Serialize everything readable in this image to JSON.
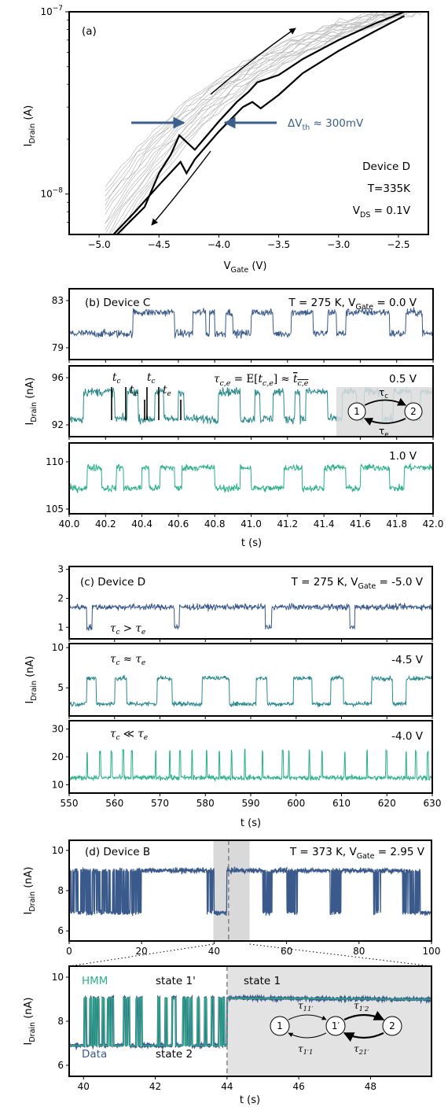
{
  "colors": {
    "dark": "#3a5a8c",
    "mid": "#2c8a8c",
    "light": "#2bb087",
    "arrow": "#3b5f8a",
    "gray": "#b8b8b8",
    "shade": "#dcdcdc"
  },
  "chart_data": [
    {
      "panel": "(a)",
      "type": "line",
      "xlabel": "V",
      "xlabel_sub": "Gate",
      "xlabel_unit": " (V)",
      "ylabel": "I",
      "ylabel_sub": "Drain",
      "ylabel_unit": " (A)",
      "xlim": [
        -5.25,
        -2.25
      ],
      "ylim": [
        6e-09,
        1e-07
      ],
      "yscale": "log",
      "xticks": [
        -5.0,
        -4.5,
        -4.0,
        -3.5,
        -3.0,
        -2.5
      ],
      "xtick_labels": [
        "−5.0",
        "−4.5",
        "−4.0",
        "−3.5",
        "−3.0",
        "−2.5"
      ],
      "ytick_labels": [
        {
          "base": "10",
          "exp": "−7",
          "value": 1e-07
        },
        {
          "base": "10",
          "exp": "−8",
          "value": 1e-08
        }
      ],
      "annotation_delta": "ΔV",
      "annotation_delta_sub": "th",
      "annotation_delta_tail": " ≈ 300mV",
      "device": "Device D",
      "temperature": "T=335K",
      "vds": "V",
      "vds_sub": "DS",
      "vds_tail": " = 0.1V",
      "series": [
        {
          "x": [
            -4.88,
            -4.7,
            -4.5,
            -4.32,
            -4.27,
            -4.2,
            -4.0,
            -3.8,
            -3.72,
            -3.65,
            -3.5,
            -3.3,
            -3.0,
            -2.7,
            -2.45
          ],
          "y": [
            6e-09,
            8e-09,
            1.12e-08,
            1.5e-08,
            1.3e-08,
            1.55e-08,
            2.2e-08,
            3e-08,
            3.2e-08,
            2.95e-08,
            3.5e-08,
            4.6e-08,
            6.1e-08,
            7.8e-08,
            9.5e-08
          ]
        },
        {
          "x": [
            -4.85,
            -4.62,
            -4.5,
            -4.4,
            -4.33,
            -4.2,
            -4.0,
            -3.85,
            -3.75,
            -3.68,
            -3.5,
            -3.3,
            -3.0,
            -2.7,
            -2.45
          ],
          "y": [
            6e-09,
            8.5e-09,
            1.3e-08,
            1.65e-08,
            2.1e-08,
            1.75e-08,
            2.5e-08,
            3.2e-08,
            3.65e-08,
            4.1e-08,
            4.5e-08,
            5.5e-08,
            7e-08,
            8.6e-08,
            1e-07
          ]
        }
      ]
    },
    {
      "panel": "(b)",
      "type": "line",
      "device": "Device C",
      "title": "T = 275 K, V",
      "title_sub": "Gate",
      "title_tail": " = 0.0 V",
      "xlabel": "t (s)",
      "ylabel": "I",
      "ylabel_sub": "Drain",
      "ylabel_unit": " (nA)",
      "xlim": [
        40.0,
        42.0
      ],
      "xticks": [
        40.0,
        40.2,
        40.4,
        40.6,
        40.8,
        41.0,
        41.2,
        41.4,
        41.6,
        41.8,
        42.0
      ],
      "xtick_labels": [
        "40.0",
        "40.2",
        "40.4",
        "40.6",
        "40.8",
        "41.0",
        "41.2",
        "41.4",
        "41.6",
        "41.8",
        "42.0"
      ],
      "rate_formula": "τ",
      "rate_sub": "c,e",
      "rate_eq": " = E[",
      "rate_t": "t",
      "rate_t_sub": "c,e",
      "rate_close": "] ≈",
      "tc_label": "t",
      "tc_sub": "c",
      "te_label": "t",
      "te_sub": "e",
      "state1": "1",
      "state2": "2",
      "tau_c": "τ",
      "tau_c_sub": "c",
      "tau_e": "τ",
      "tau_e_sub": "e",
      "subplots": [
        {
          "vgate_label": "",
          "ylim": [
            78.0,
            84.0
          ],
          "yticks": [
            79,
            83
          ],
          "ytick_labels": [
            "79",
            "83"
          ],
          "low": 80.2,
          "high": 82.0,
          "noise": 0.45,
          "transitions": [
            40.0,
            40.35,
            40.58,
            40.68,
            40.75,
            40.77,
            40.8,
            40.86,
            40.9,
            41.0,
            41.12,
            41.22,
            41.34,
            41.42,
            41.47,
            41.52,
            41.76,
            41.85,
            41.94,
            42.0
          ]
        },
        {
          "vgate_label": "0.5 V",
          "ylim": [
            91.0,
            97.0
          ],
          "yticks": [
            92,
            96
          ],
          "ytick_labels": [
            "92",
            "96"
          ],
          "low": 92.5,
          "high": 94.8,
          "noise": 0.5,
          "transitions": [
            40.0,
            40.08,
            40.25,
            40.32,
            40.38,
            40.47,
            40.52,
            40.6,
            40.63,
            40.82,
            40.94,
            41.02,
            41.05,
            41.12,
            41.18,
            41.24,
            41.27,
            41.3,
            41.42,
            41.5,
            41.58,
            41.62,
            41.72,
            41.78,
            41.88,
            41.93,
            42.0
          ]
        },
        {
          "vgate_label": "1.0 V",
          "ylim": [
            104.5,
            112.0
          ],
          "yticks": [
            105,
            110
          ],
          "ytick_labels": [
            "105",
            "110"
          ],
          "low": 107.2,
          "high": 109.4,
          "noise": 0.5,
          "transitions": [
            40.0,
            40.1,
            40.18,
            40.26,
            40.3,
            40.4,
            40.44,
            40.5,
            40.58,
            40.62,
            40.8,
            40.94,
            41.0,
            41.18,
            41.28,
            41.4,
            41.52,
            41.6,
            41.76,
            41.84,
            42.0
          ]
        }
      ]
    },
    {
      "panel": "(c)",
      "type": "line",
      "device": "Device D",
      "title": "T = 275 K, V",
      "title_sub": "Gate",
      "title_tail": " = -5.0 V",
      "xlabel": "t (s)",
      "ylabel": "I",
      "ylabel_sub": "Drain",
      "ylabel_unit": " (nA)",
      "xlim": [
        550,
        630
      ],
      "xticks": [
        550,
        560,
        570,
        580,
        590,
        600,
        610,
        620,
        630
      ],
      "xtick_labels": [
        "550",
        "560",
        "570",
        "580",
        "590",
        "600",
        "610",
        "620",
        "630"
      ],
      "subplots": [
        {
          "vgate_label": "",
          "ratio_a": "τ",
          "ratio_a_sub": "c",
          "ratio_op": " > ",
          "ratio_b": "τ",
          "ratio_b_sub": "e",
          "ylim": [
            0.6,
            3.1
          ],
          "yticks": [
            1,
            2,
            3
          ],
          "ytick_labels": [
            "1",
            "2",
            "3"
          ],
          "low": 1.0,
          "high": 1.7,
          "noise": 0.14
        },
        {
          "vgate_label": "-4.5 V",
          "ratio_a": "τ",
          "ratio_a_sub": "c",
          "ratio_op": " ≈ ",
          "ratio_b": "τ",
          "ratio_b_sub": "e",
          "ylim": [
            1.5,
            10.5
          ],
          "yticks": [
            5,
            10
          ],
          "ytick_labels": [
            "5",
            "10"
          ],
          "low": 3.0,
          "high": 6.2,
          "noise": 0.4
        },
        {
          "vgate_label": "-4.0 V",
          "ratio_a": "τ",
          "ratio_a_sub": "c",
          "ratio_op": " ≪ ",
          "ratio_b": "τ",
          "ratio_b_sub": "e",
          "ylim": [
            7.0,
            33.0
          ],
          "yticks": [
            10,
            20,
            30
          ],
          "ytick_labels": [
            "10",
            "20",
            "30"
          ],
          "low": 12.5,
          "high": 22.0,
          "noise": 1.2
        }
      ]
    },
    {
      "panel": "(d)",
      "type": "line",
      "device": "Device B",
      "title": "T = 373 K, V",
      "title_sub": "Gate",
      "title_tail": " = 2.95 V",
      "xlabel": "t (s)",
      "ylabel": "I",
      "ylabel_sub": "Drain",
      "ylabel_unit": " (nA)",
      "top": {
        "xlim": [
          0,
          100
        ],
        "ylim": [
          5.5,
          10.5
        ],
        "xticks": [
          0,
          20,
          40,
          60,
          80,
          100
        ],
        "xtick_labels": [
          "0",
          "20",
          "40",
          "60",
          "80",
          "100"
        ],
        "yticks": [
          6,
          8,
          10
        ],
        "ytick_labels": [
          "6",
          "8",
          "10"
        ],
        "shade": [
          39.8,
          49.8
        ],
        "dashed_x": 44.0,
        "low": 6.9,
        "high": 9.0
      },
      "bottom": {
        "xlim": [
          39.6,
          49.7
        ],
        "ylim": [
          5.5,
          10.5
        ],
        "xticks": [
          40,
          42,
          44,
          46,
          48
        ],
        "xtick_labels": [
          "40",
          "42",
          "44",
          "46",
          "48"
        ],
        "yticks": [
          6,
          8,
          10
        ],
        "ytick_labels": [
          "6",
          "8",
          "10"
        ],
        "shade_from": 44.0,
        "dashed_x": 44.0,
        "legend_hmm": "HMM",
        "legend_data": "Data",
        "state_1p": "state 1'",
        "state_1": "state 1",
        "state_2": "state 2",
        "nodes": [
          "1",
          "1′",
          "2"
        ],
        "tau_11p": "τ",
        "tau_11p_sub": "11′",
        "tau_1p2": "τ",
        "tau_1p2_sub": "1′2",
        "tau_1p1": "τ",
        "tau_1p1_sub": "1′1",
        "tau_21p": "τ",
        "tau_21p_sub": "21′",
        "low": 6.9,
        "high": 9.05,
        "state1_level": 9.05
      }
    }
  ]
}
